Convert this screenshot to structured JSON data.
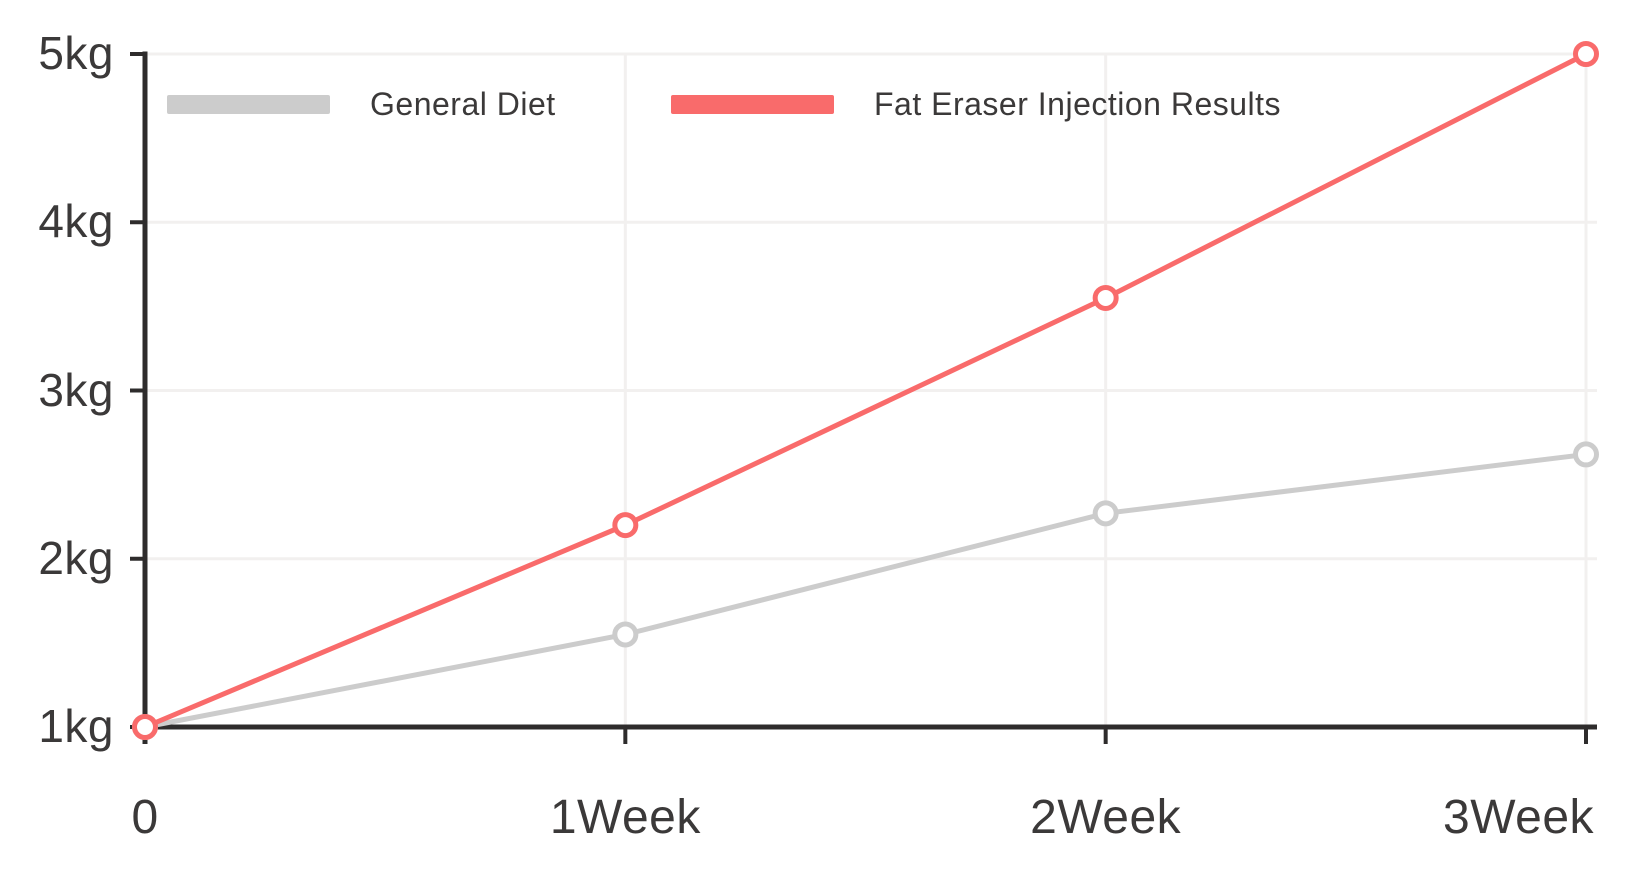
{
  "chart_data": {
    "type": "line",
    "title": "",
    "xlabel": "",
    "ylabel": "",
    "x": [
      0,
      1,
      2,
      3
    ],
    "x_tick_labels": [
      "0",
      "1Week",
      "2Week",
      "3Week"
    ],
    "y_ticks": [
      1,
      2,
      3,
      4,
      5
    ],
    "y_tick_labels": [
      "1kg",
      "2kg",
      "3kg",
      "4kg",
      "5kg"
    ],
    "xlim": [
      0,
      3
    ],
    "ylim": [
      1,
      5
    ],
    "grid": true,
    "marker": "open-circle",
    "line_style": "straight",
    "legend_position": "top-inside",
    "series": [
      {
        "name": "General Diet",
        "color": "#cccccc",
        "values": [
          1,
          1.55,
          2.27,
          2.62
        ]
      },
      {
        "name": "Fat Eraser Injection Results",
        "color": "#f96b6b",
        "values": [
          1,
          2.2,
          3.55,
          5.0
        ]
      }
    ]
  },
  "colors": {
    "background": "#ffffff",
    "axis": "#2e2c2c",
    "tick_label_text": "#3b3939",
    "grid": "#f2f0ef",
    "general_diet_line": "#cccccc",
    "fat_eraser_line": "#f96b6b",
    "marker_fill": "#ffffff"
  }
}
